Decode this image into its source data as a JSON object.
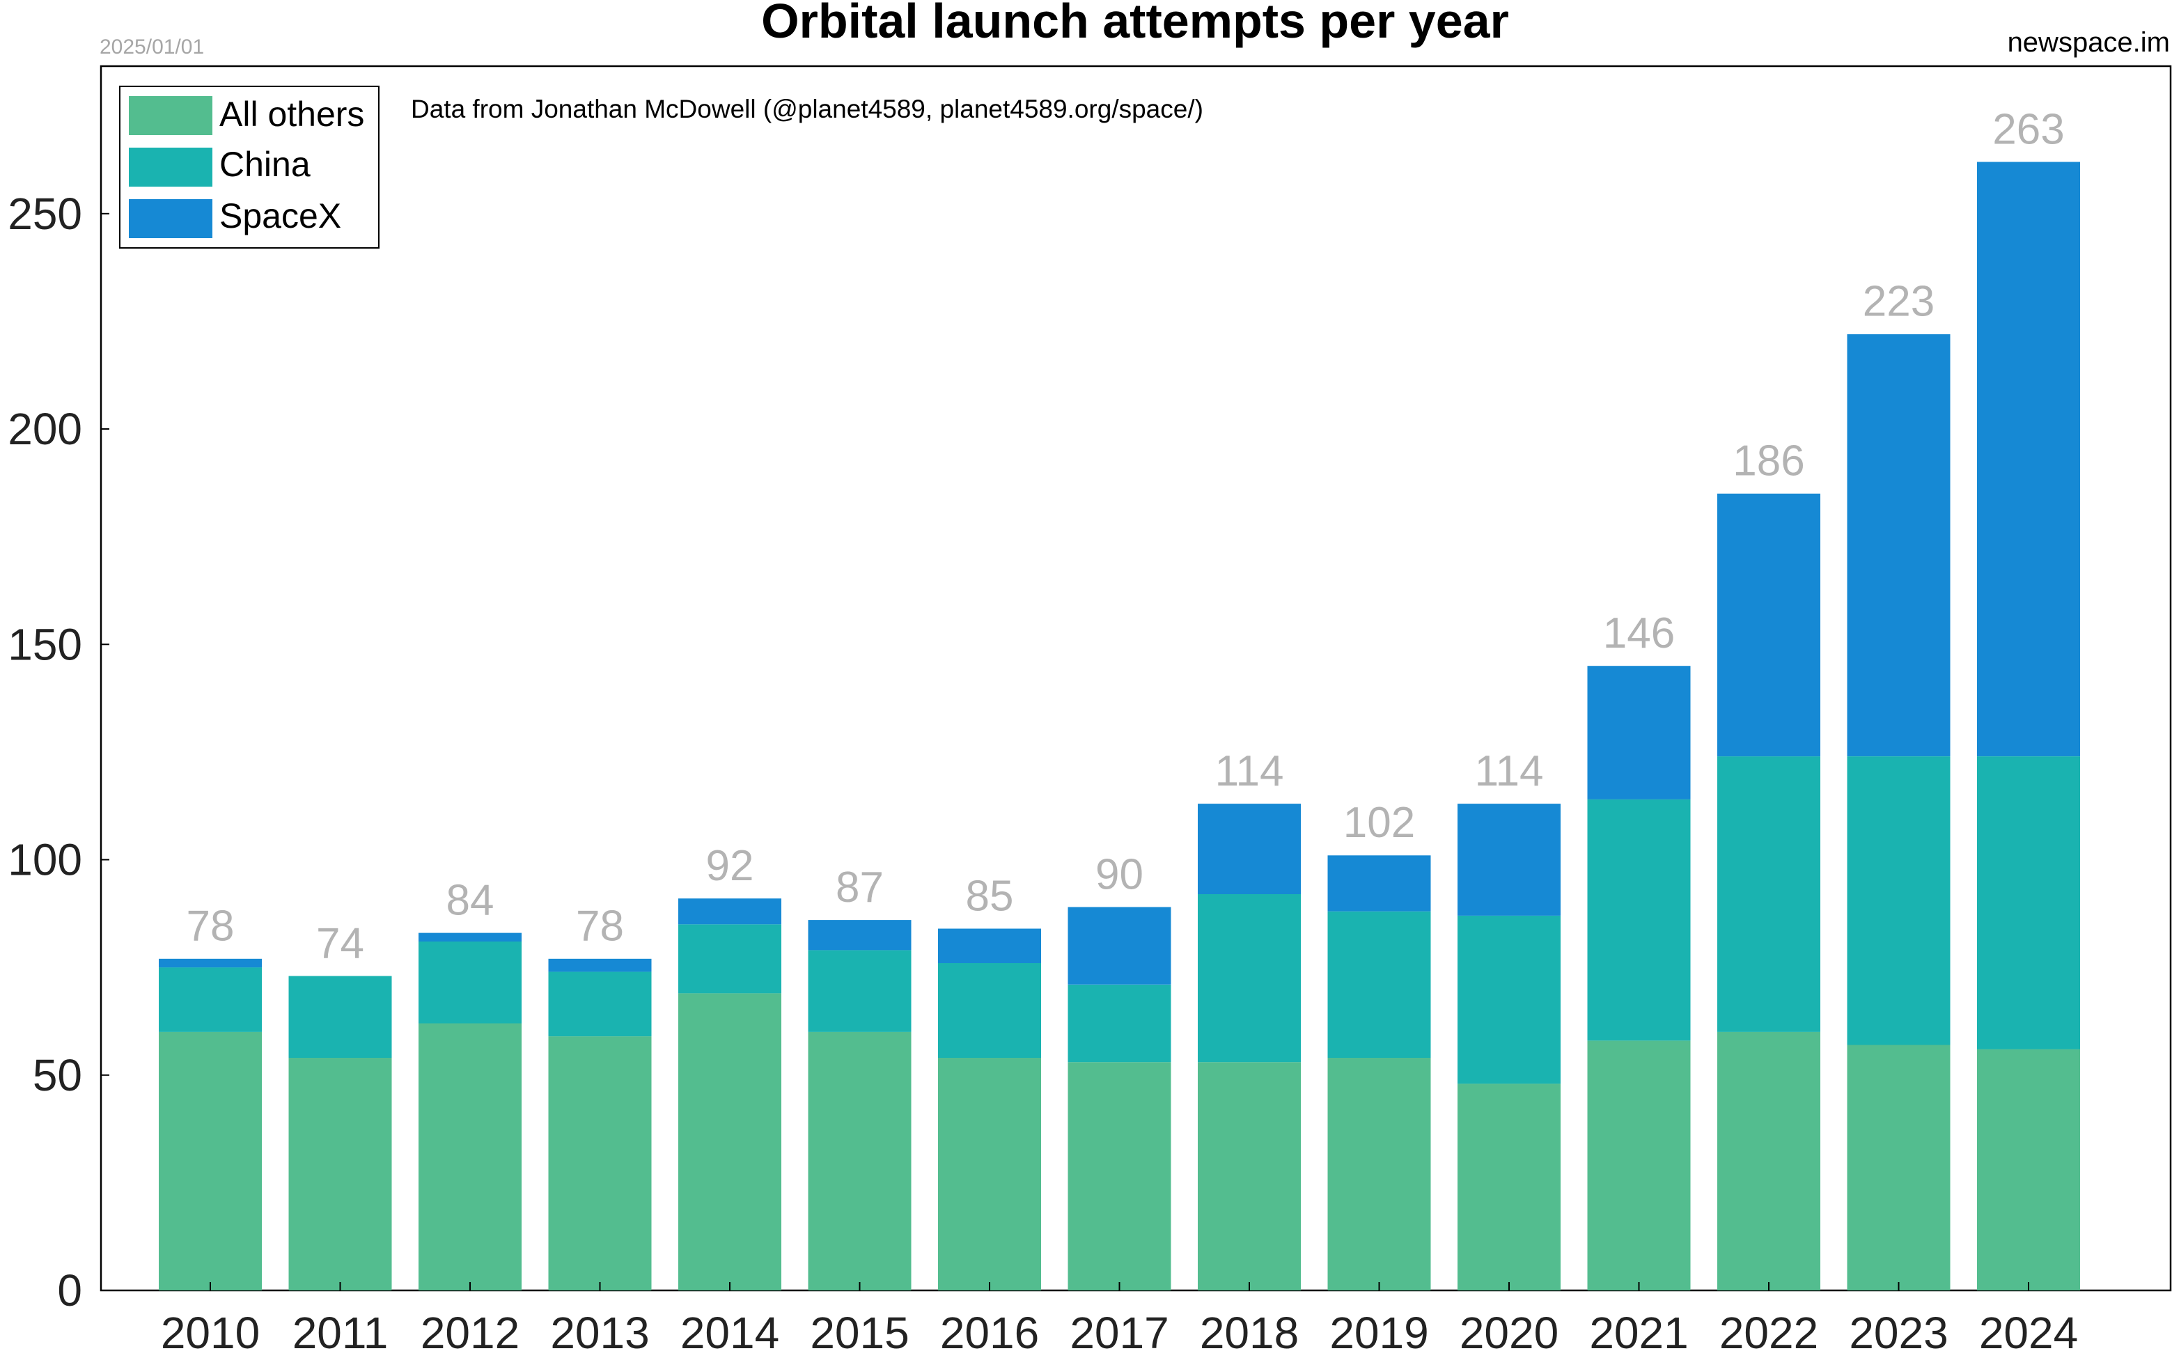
{
  "header": {
    "date": "2025/01/01",
    "source_site": "newspace.im",
    "credit": "Data from Jonathan McDowell (@planet4589, planet4589.org/space/)"
  },
  "chart_data": {
    "type": "bar",
    "stacked": true,
    "title": "Orbital launch attempts per year",
    "xlabel": "",
    "ylabel": "",
    "categories": [
      "2010",
      "2011",
      "2012",
      "2013",
      "2014",
      "2015",
      "2016",
      "2017",
      "2018",
      "2019",
      "2020",
      "2021",
      "2022",
      "2023",
      "2024"
    ],
    "series": [
      {
        "name": "All others",
        "color": "#53bd8f",
        "values": [
          60,
          54,
          62,
          59,
          69,
          60,
          54,
          53,
          53,
          54,
          48,
          58,
          60,
          57,
          56
        ]
      },
      {
        "name": "China",
        "color": "#1ab3b0",
        "values": [
          15,
          19,
          19,
          15,
          16,
          19,
          22,
          18,
          39,
          34,
          39,
          56,
          64,
          67,
          68
        ]
      },
      {
        "name": "SpaceX",
        "color": "#1689d4",
        "values": [
          2,
          0,
          2,
          3,
          6,
          7,
          8,
          18,
          21,
          13,
          26,
          31,
          61,
          98,
          138
        ]
      }
    ],
    "totals": [
      78,
      74,
      84,
      78,
      92,
      87,
      85,
      90,
      114,
      102,
      114,
      146,
      186,
      223,
      263
    ],
    "yticks": [
      0,
      50,
      100,
      150,
      200,
      250
    ],
    "ylim": [
      0,
      284
    ],
    "grid": false,
    "legend_position": "top-left",
    "total_label_color": "#b3b3b3"
  }
}
